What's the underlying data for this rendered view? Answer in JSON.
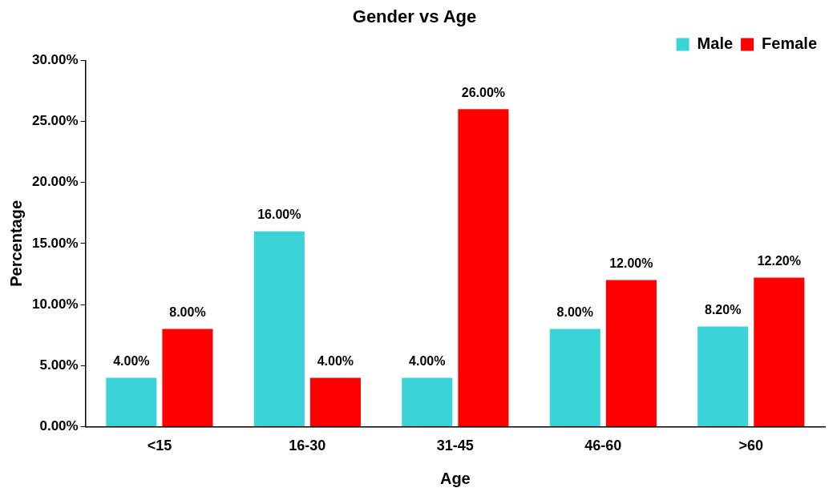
{
  "chart_data": {
    "type": "bar",
    "title": "Gender vs Age",
    "xlabel": "Age",
    "ylabel": "Percentage",
    "categories": [
      "<15",
      "16-30",
      "31-45",
      "46-60",
      ">60"
    ],
    "series": [
      {
        "name": "Male",
        "color": "#39d3d8",
        "values": [
          4,
          16,
          4,
          8,
          8.2
        ],
        "value_labels": [
          "4.00%",
          "16.00%",
          "4.00%",
          "8.00%",
          "8.20%"
        ]
      },
      {
        "name": "Female",
        "color": "#ff0000",
        "values": [
          8,
          4,
          26,
          12,
          12.2
        ],
        "value_labels": [
          "8.00%",
          "4.00%",
          "26.00%",
          "12.00%",
          "12.20%"
        ]
      }
    ],
    "ylim": [
      0,
      30
    ],
    "yticks": [
      {
        "value": 0,
        "label": "0.00%"
      },
      {
        "value": 5,
        "label": "5.00%"
      },
      {
        "value": 10,
        "label": "10.00%"
      },
      {
        "value": 15,
        "label": "15.00%"
      },
      {
        "value": 20,
        "label": "20.00%"
      },
      {
        "value": 25,
        "label": "25.00%"
      },
      {
        "value": 30,
        "label": "30.00%"
      }
    ],
    "grid": false,
    "legend": "top right"
  }
}
